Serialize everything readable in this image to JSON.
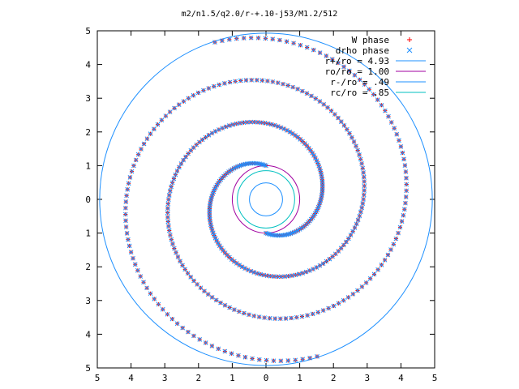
{
  "chart_data": {
    "type": "scatter",
    "title": "m2/n1.5/q2.0/r-+.10-j53/M1.2/512",
    "xlabel": "",
    "ylabel": "",
    "xlim": [
      -5,
      5
    ],
    "ylim": [
      -5,
      5
    ],
    "x_tick_values": [
      -5,
      -4,
      -3,
      -2,
      -1,
      0,
      1,
      2,
      3,
      4,
      5
    ],
    "x_tick_labels": [
      "5",
      "4",
      "3",
      "2",
      "1",
      "0",
      "1",
      "2",
      "3",
      "4",
      "5"
    ],
    "y_tick_values": [
      5,
      4,
      3,
      2,
      1,
      0,
      -1,
      -2,
      -3,
      -4,
      -5
    ],
    "y_tick_labels": [
      "5",
      "4",
      "3",
      "2",
      "1",
      "0",
      "1",
      "2",
      "3",
      "4",
      "5"
    ],
    "grid": false,
    "legend_position": "top-right",
    "series": [
      {
        "name": "W phase",
        "marker": "plus",
        "color": "#ff0000",
        "spiral": {
          "arms": 2,
          "r_inner": 1.0,
          "r_outer": 4.9,
          "phase_start_deg": 90,
          "turns": 1.55,
          "points_per_arm": 220
        }
      },
      {
        "name": "drho phase",
        "marker": "cross",
        "color": "#1e90ff",
        "spiral": {
          "arms": 2,
          "r_inner": 1.0,
          "r_outer": 4.9,
          "phase_start_deg": 90,
          "turns": 1.55,
          "points_per_arm": 220
        }
      }
    ],
    "circles": [
      {
        "name": "r+/ro = 4.93",
        "radius": 4.93,
        "color": "#1e90ff"
      },
      {
        "name": "ro/ro = 1.00",
        "radius": 1.0,
        "color": "#a000a0"
      },
      {
        "name": "r-/ro = .49",
        "radius": 0.49,
        "color": "#1e90ff"
      },
      {
        "name": "rc/ro = .85",
        "radius": 0.85,
        "color": "#00c0c0"
      }
    ]
  }
}
